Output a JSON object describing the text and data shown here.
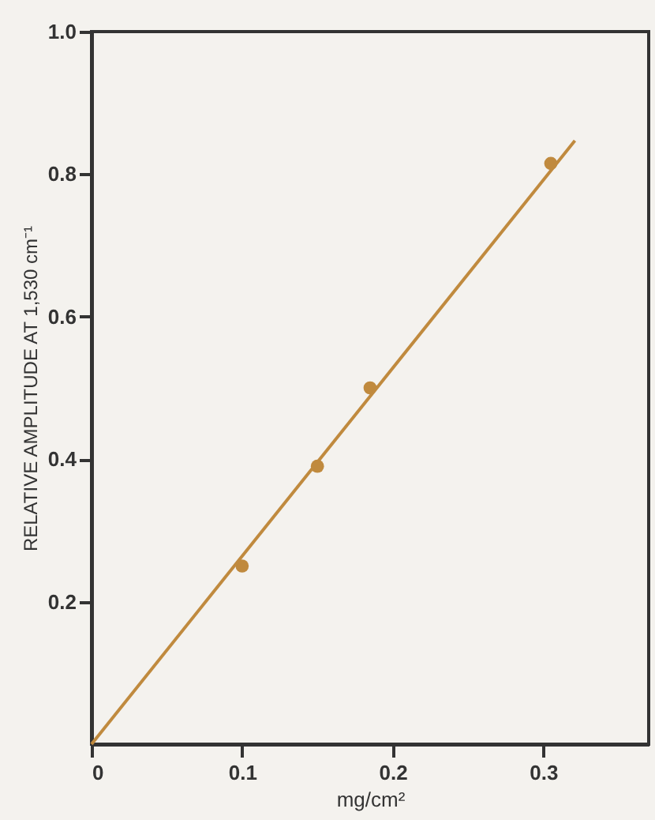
{
  "chart_data": {
    "type": "scatter",
    "xlabel": "mg/cm²",
    "ylabel": "RELATIVE AMPLITUDE AT 1,530 cm⁻¹",
    "xlim": [
      0,
      0.37
    ],
    "ylim": [
      0,
      1.0
    ],
    "xticks": [
      0,
      0.1,
      0.2,
      0.3
    ],
    "yticks": [
      {
        "value": 0.2,
        "label": "0.2"
      },
      {
        "value": 0.4,
        "label": "0.4"
      },
      {
        "value": 0.6,
        "label": "0.6"
      },
      {
        "value": 0.8,
        "label": "0.8"
      },
      {
        "value": 1.0,
        "label": "1.0"
      }
    ],
    "grid": false,
    "marker": "circle",
    "series": [
      {
        "type": "scatter",
        "color": "#c08a3e",
        "x": [
          0.1,
          0.15,
          0.185,
          0.305
        ],
        "values": [
          0.25,
          0.39,
          0.5,
          0.815
        ]
      },
      {
        "type": "line",
        "color": "#c08a3e",
        "marker": "none",
        "line_style": "solid",
        "x": [
          0,
          0.321
        ],
        "values": [
          0,
          0.847
        ]
      }
    ]
  }
}
